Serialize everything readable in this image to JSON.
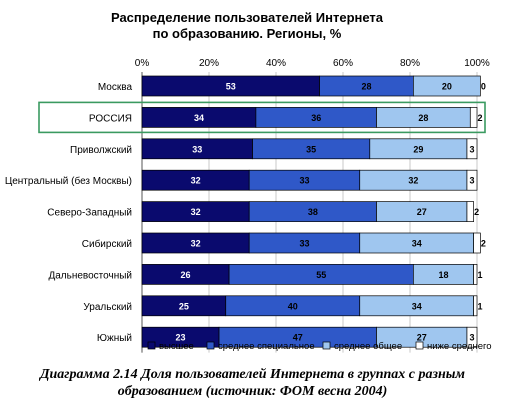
{
  "chart_data": {
    "type": "bar",
    "orientation": "horizontal",
    "stacked": true,
    "title": "Распределение пользователей Интернета\nпо образованию. Регионы, %",
    "xlim": [
      0,
      100
    ],
    "x_tick_labels": [
      "0%",
      "20%",
      "40%",
      "60%",
      "80%",
      "100%"
    ],
    "grid": true,
    "legend_position": "bottom",
    "categories": [
      "Москва",
      "РОССИЯ",
      "Приволжский",
      "Центральный (без Москвы)",
      "Северо-Западный",
      "Сибирский",
      "Дальневосточный",
      "Уральский",
      "Южный"
    ],
    "highlighted_category": "РОССИЯ",
    "highlight_color": "#3a9a60",
    "series": [
      {
        "name": "высшее",
        "color": "#0a0a6e",
        "label_color": "#ffffff",
        "values": [
          53,
          34,
          33,
          32,
          32,
          32,
          26,
          25,
          23
        ]
      },
      {
        "name": "среднее специальное",
        "color": "#2f58c8",
        "label_color": "#000000",
        "values": [
          28,
          36,
          35,
          33,
          38,
          33,
          55,
          40,
          47
        ]
      },
      {
        "name": "среднее общее",
        "color": "#9fc6ef",
        "label_color": "#000000",
        "values": [
          20,
          28,
          29,
          32,
          27,
          34,
          18,
          34,
          27
        ]
      },
      {
        "name": "ниже среднего",
        "color": "#ffffff",
        "label_color": "#000000",
        "values": [
          0,
          2,
          3,
          3,
          2,
          2,
          1,
          1,
          3
        ]
      }
    ]
  },
  "caption": "Диаграмма 2.14 Доля пользователей Интернета в группах с разным образованием (источник: ФОМ весна 2004)"
}
